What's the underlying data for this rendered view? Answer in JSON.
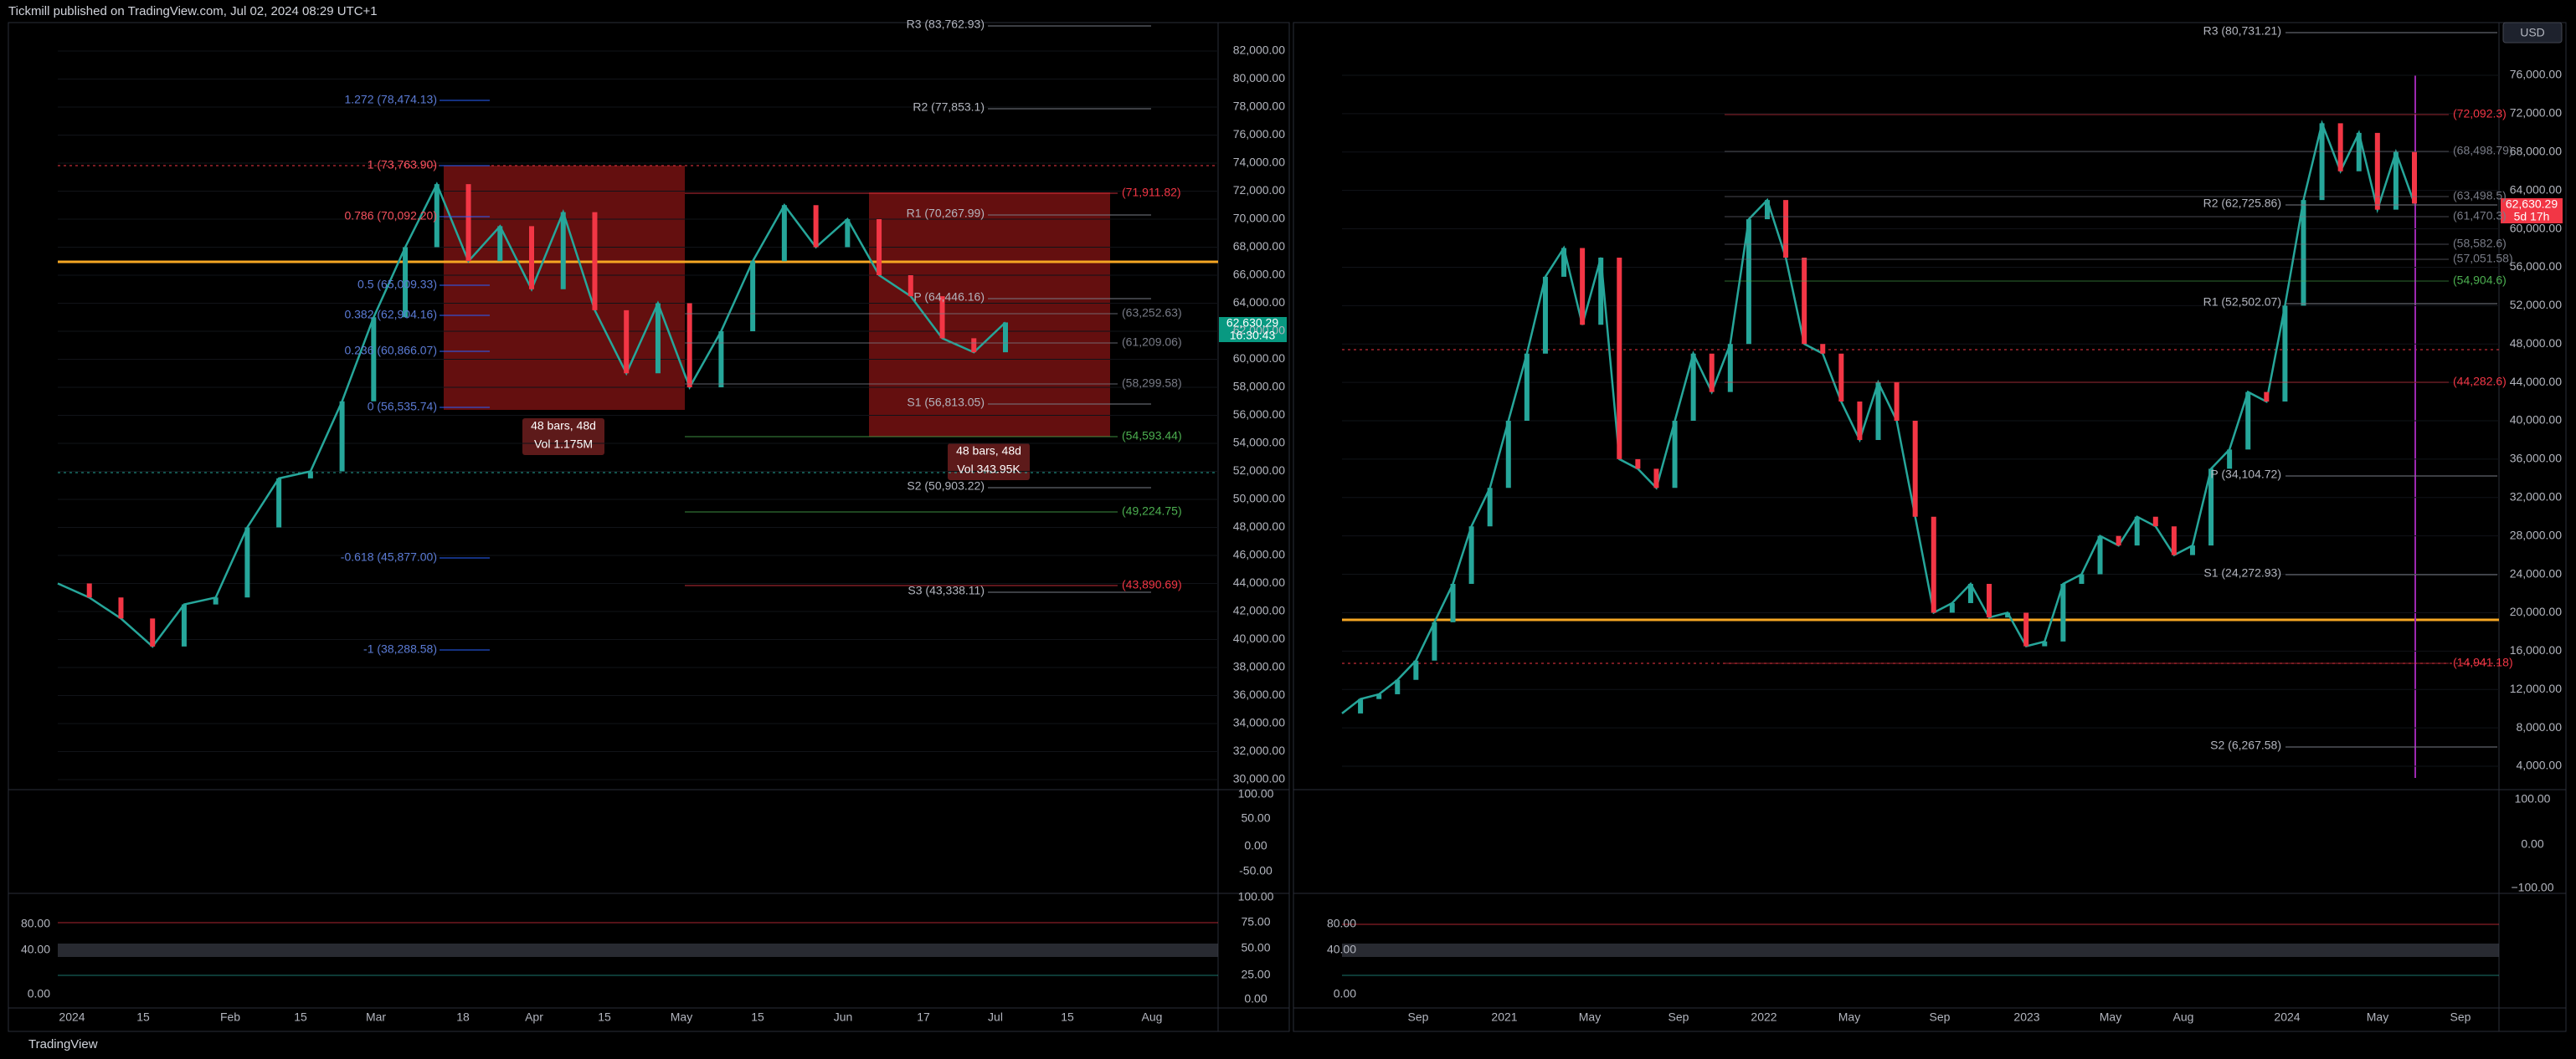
{
  "header": {
    "title": "Tickmill published on TradingView.com, Jul 02, 2024 08:29 UTC+1"
  },
  "footer": {
    "brand": "TradingView"
  },
  "left_chart": {
    "price_axis": [
      {
        "value": 82000,
        "label": "82,000.00"
      },
      {
        "value": 80000,
        "label": "80,000.00"
      },
      {
        "value": 78000,
        "label": "78,000.00"
      },
      {
        "value": 76000,
        "label": "76,000.00"
      },
      {
        "value": 74000,
        "label": "74,000.00"
      },
      {
        "value": 72000,
        "label": "72,000.00"
      },
      {
        "value": 70000,
        "label": "70,000.00"
      },
      {
        "value": 68000,
        "label": "68,000.00"
      },
      {
        "value": 66000,
        "label": "66,000.00"
      },
      {
        "value": 64000,
        "label": "64,000.00"
      },
      {
        "value": 62000,
        "label": "62,000.00"
      },
      {
        "value": 60000,
        "label": "60,000.00"
      },
      {
        "value": 58000,
        "label": "58,000.00"
      },
      {
        "value": 56000,
        "label": "56,000.00"
      },
      {
        "value": 54000,
        "label": "54,000.00"
      },
      {
        "value": 52000,
        "label": "52,000.00"
      },
      {
        "value": 50000,
        "label": "50,000.00"
      },
      {
        "value": 48000,
        "label": "48,000.00"
      },
      {
        "value": 46000,
        "label": "46,000.00"
      },
      {
        "value": 44000,
        "label": "44,000.00"
      },
      {
        "value": 42000,
        "label": "42,000.00"
      },
      {
        "value": 40000,
        "label": "40,000.00"
      },
      {
        "value": 38000,
        "label": "38,000.00"
      },
      {
        "value": 36000,
        "label": "36,000.00"
      },
      {
        "value": 34000,
        "label": "34,000.00"
      },
      {
        "value": 32000,
        "label": "32,000.00"
      },
      {
        "value": 30000,
        "label": "30,000.00"
      }
    ],
    "close": [
      44000,
      43000,
      41500,
      39500,
      42500,
      43000,
      48000,
      51500,
      52000,
      57000,
      63000,
      68000,
      72500,
      67000,
      69500,
      65000,
      70500,
      63500,
      59000,
      64000,
      58000,
      62000,
      67000,
      71000,
      68000,
      70000,
      66000,
      64500,
      61500,
      60500,
      62630.29
    ],
    "time_axis": [
      "2024",
      "15",
      "Feb",
      "15",
      "Mar",
      "18",
      "Apr",
      "15",
      "May",
      "15",
      "Jun",
      "17",
      "Jul",
      "15",
      "Aug"
    ],
    "pivots": [
      "R3 (83,762.93)",
      "R2 (77,853.1)",
      "R1 (70,267.99)",
      "P (64,446.16)",
      "S1 (56,813.05)",
      "S2 (50,903.22)",
      "S3 (43,338.11)"
    ],
    "fib_levels": [
      "1.272 (78,474.13)",
      "1 (73,763.90)",
      "0.786 (70,092.20)",
      "0.5 (65,009.33)",
      "0.382 (62,904.16)",
      "0.236 (60,866.07)",
      "0 (56,535.74)",
      "-0.618 (45,877.00)",
      "-1 (38,288.58)"
    ],
    "side_levels": [
      "(71,911.82)",
      "(63,252.63)",
      "(61,209.06)",
      "(58,299.58)",
      "(54,593.44)",
      "(49,224.75)",
      "(43,890.69)"
    ],
    "price_tag": {
      "price": "62,630.29",
      "countdown": "16:30:43"
    },
    "measures": [
      {
        "bars": "48 bars, 48d",
        "volume": "Vol 1.175M"
      },
      {
        "bars": "48 bars, 48d",
        "volume": "Vol 343.95K"
      }
    ],
    "osc1_axis": [
      "100.00",
      "50.00",
      "0.00",
      "-50.00"
    ],
    "osc2_axis": [
      "100.00",
      "75.00",
      "50.00",
      "25.00",
      "0.00"
    ],
    "osc2_levels": [
      "80.00",
      "40.00",
      "0.00"
    ]
  },
  "right_chart": {
    "currency": "USD",
    "price_axis": [
      {
        "value": 76000,
        "label": "76,000.00"
      },
      {
        "value": 72000,
        "label": "72,000.00"
      },
      {
        "value": 68000,
        "label": "68,000.00"
      },
      {
        "value": 64000,
        "label": "64,000.00"
      },
      {
        "value": 60000,
        "label": "60,000.00"
      },
      {
        "value": 56000,
        "label": "56,000.00"
      },
      {
        "value": 52000,
        "label": "52,000.00"
      },
      {
        "value": 48000,
        "label": "48,000.00"
      },
      {
        "value": 44000,
        "label": "44,000.00"
      },
      {
        "value": 40000,
        "label": "40,000.00"
      },
      {
        "value": 36000,
        "label": "36,000.00"
      },
      {
        "value": 32000,
        "label": "32,000.00"
      },
      {
        "value": 28000,
        "label": "28,000.00"
      },
      {
        "value": 24000,
        "label": "24,000.00"
      },
      {
        "value": 20000,
        "label": "20,000.00"
      },
      {
        "value": 16000,
        "label": "16,000.00"
      },
      {
        "value": 12000,
        "label": "12,000.00"
      },
      {
        "value": 8000,
        "label": "8,000.00"
      },
      {
        "value": 4000,
        "label": "4,000.00"
      }
    ],
    "close": [
      9500,
      11000,
      11500,
      13000,
      15000,
      19000,
      23000,
      29000,
      33000,
      40000,
      47000,
      55000,
      58000,
      50000,
      57000,
      36000,
      35000,
      33000,
      40000,
      47000,
      43000,
      48000,
      61000,
      63000,
      57000,
      48000,
      47000,
      42000,
      38000,
      44000,
      40000,
      30000,
      20000,
      21000,
      23000,
      19500,
      20000,
      16500,
      17000,
      23000,
      24000,
      28000,
      27000,
      30000,
      29000,
      26000,
      27000,
      35000,
      37000,
      43000,
      42000,
      52000,
      63000,
      71000,
      66000,
      70000,
      62000,
      68000,
      62630.29
    ],
    "time_axis": [
      "Sep",
      "2021",
      "May",
      "Sep",
      "2022",
      "May",
      "Sep",
      "2023",
      "May",
      "Aug",
      "2024",
      "May",
      "Sep"
    ],
    "pivots": [
      "R3 (80,731.21)",
      "R2 (62,725.86)",
      "R1 (52,502.07)",
      "P (34,104.72)",
      "S1 (24,272.93)",
      "S2 (6,267.58)"
    ],
    "side_levels": [
      "(72,092.3)",
      "(68,498.79)",
      "(63,498.5)",
      "(61,470.3)",
      "(58,582.6)",
      "(57,051.58)",
      "(54,904.6)",
      "(44,282.6)",
      "(14,941.18)"
    ],
    "price_tag": {
      "price": "62,630.29",
      "countdown": "5d 17h"
    },
    "osc1_axis": [
      "100.00",
      "0.00",
      "−100.00"
    ],
    "osc2_levels": [
      "80.00",
      "40.00",
      "0.00"
    ]
  }
}
